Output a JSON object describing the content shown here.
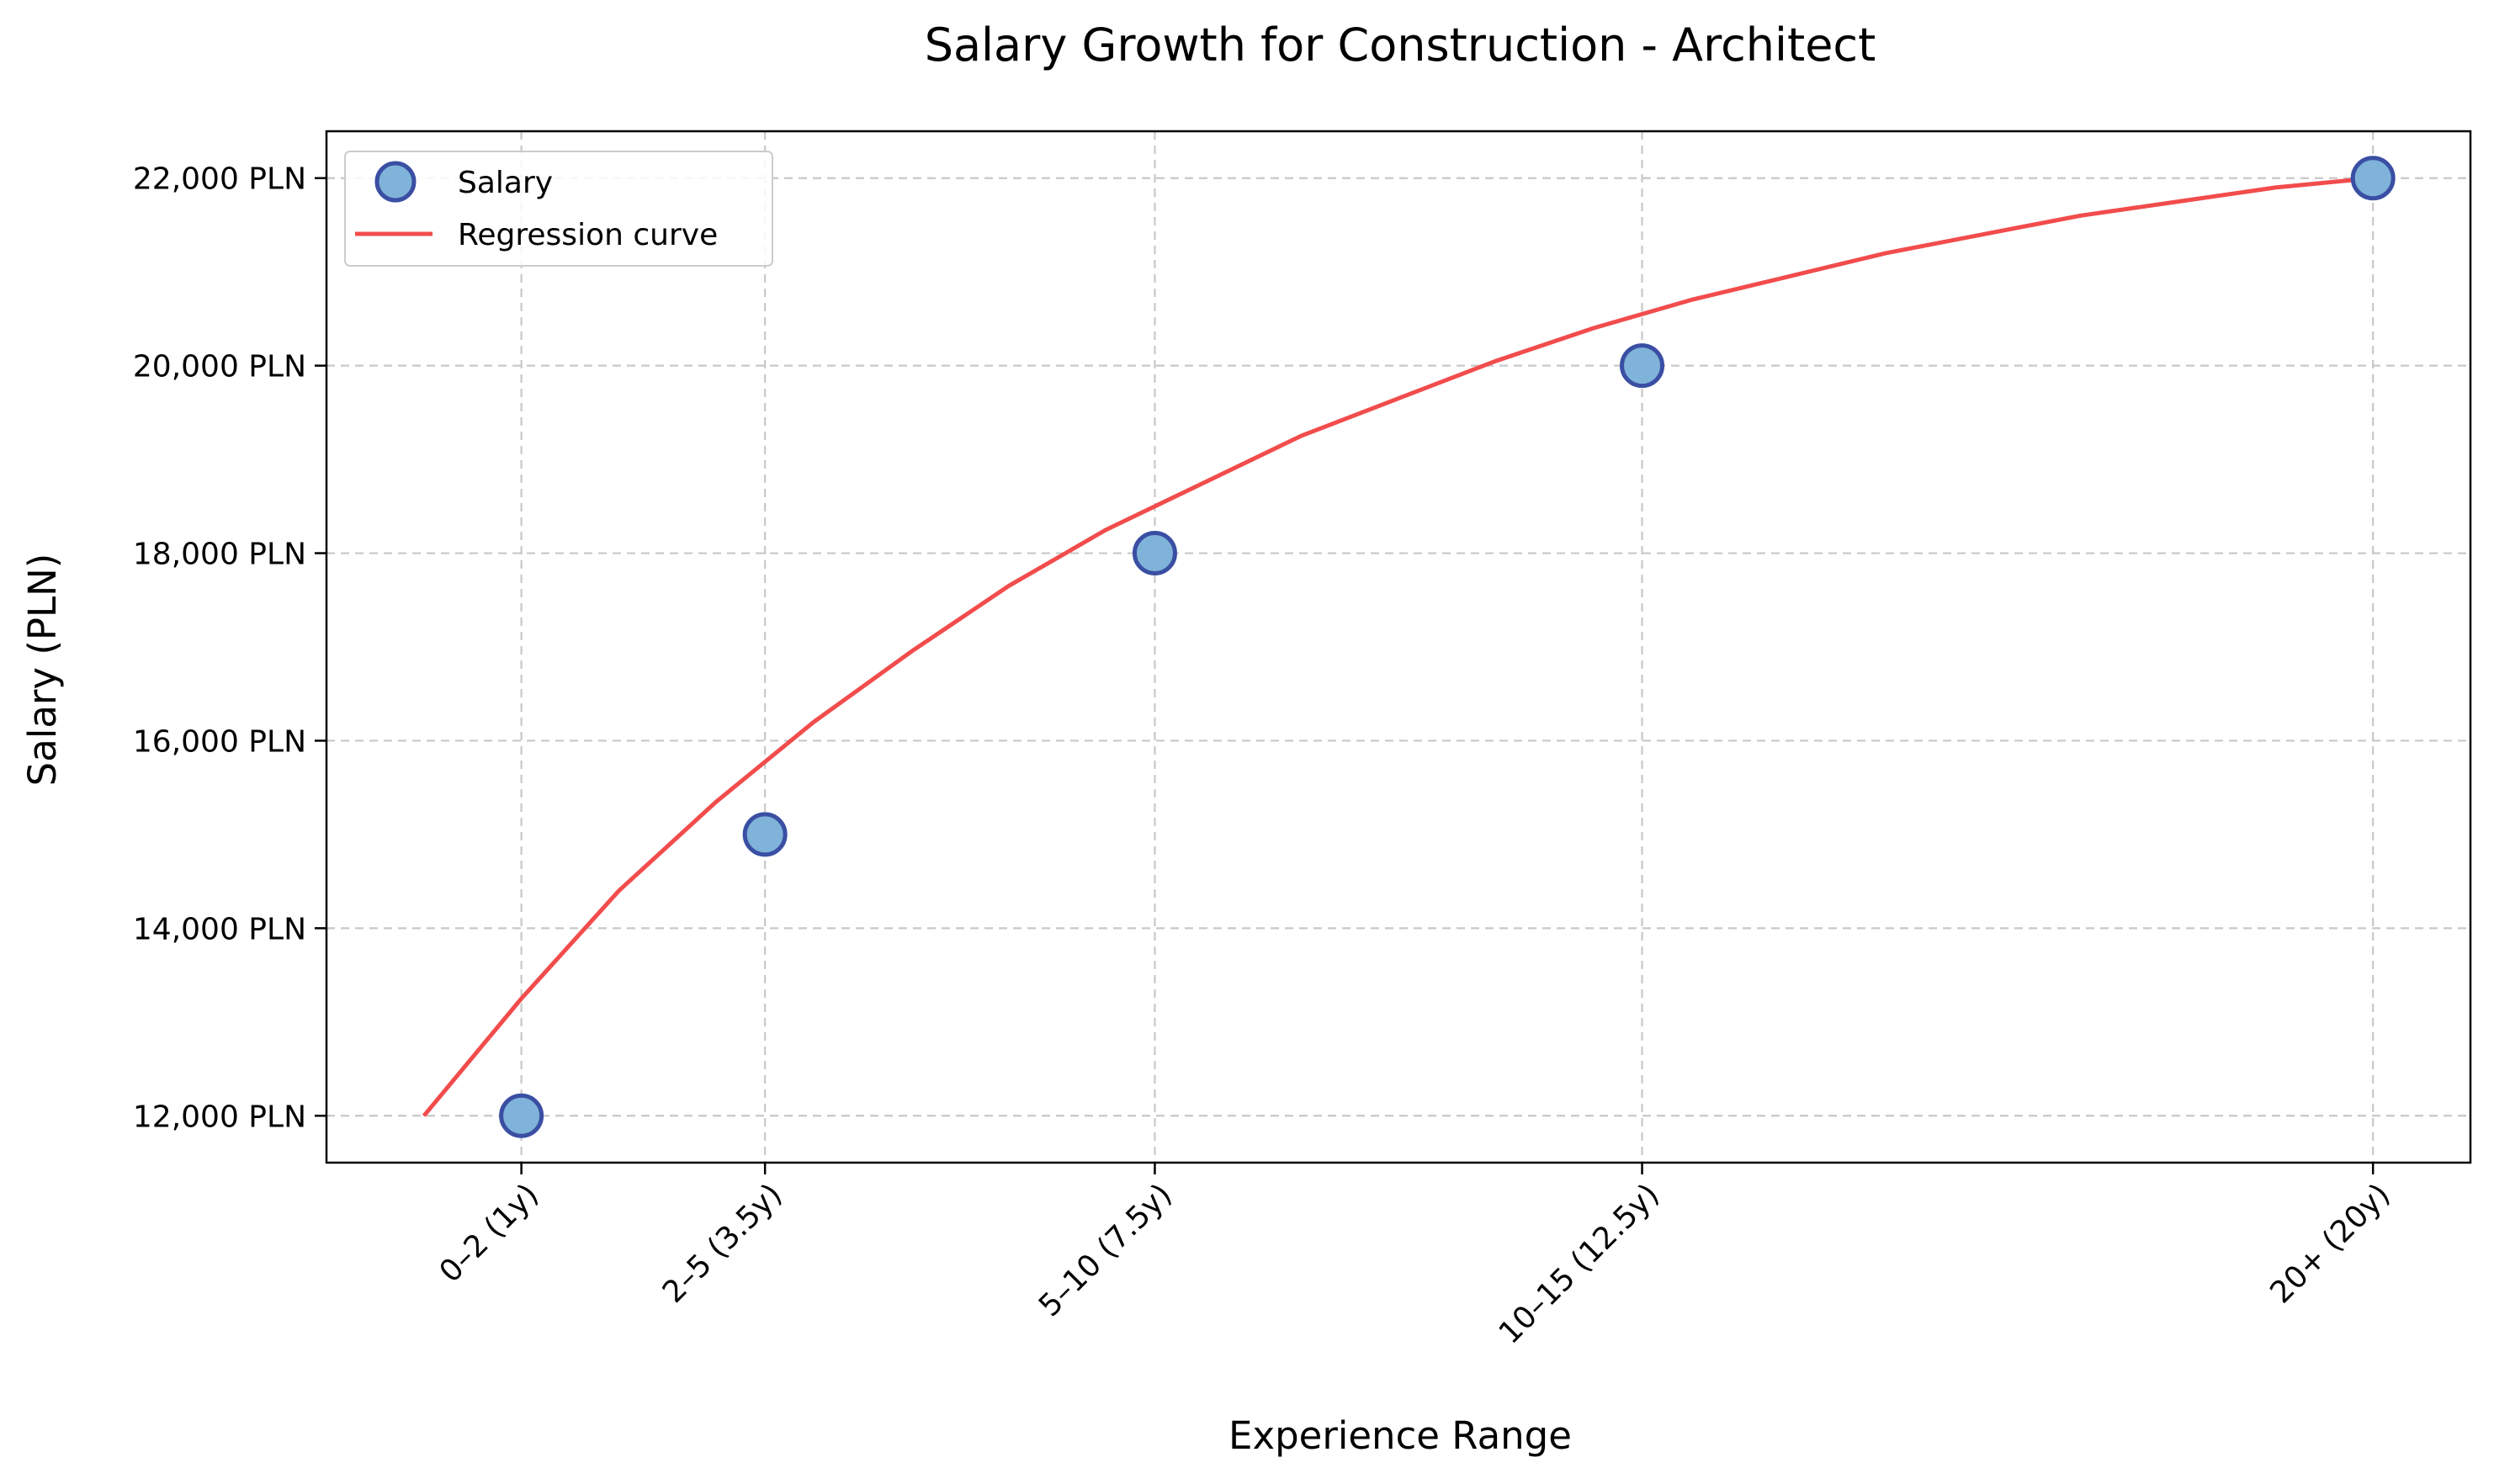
{
  "chart_data": {
    "type": "scatter",
    "title": "Salary Growth for Construction - Architect",
    "xlabel": "Experience Range",
    "ylabel": "Salary (PLN)",
    "x_tick_values": [
      1,
      3.5,
      7.5,
      12.5,
      20
    ],
    "x_tick_labels": [
      "0–2 (1y)",
      "2–5 (3.5y)",
      "5–10 (7.5y)",
      "10–15 (12.5y)",
      "20+ (20y)"
    ],
    "xlim": [
      -1,
      21
    ],
    "ylim": [
      11500,
      22500
    ],
    "y_tick_values": [
      12000,
      14000,
      16000,
      18000,
      20000,
      22000
    ],
    "y_tick_labels": [
      "12,000 PLN",
      "14,000 PLN",
      "16,000 PLN",
      "18,000 PLN",
      "20,000 PLN",
      "22,000 PLN"
    ],
    "grid": true,
    "legend_position": "top-left",
    "series": [
      {
        "name": "Salary",
        "kind": "scatter",
        "x": [
          1,
          3.5,
          7.5,
          12.5,
          20
        ],
        "y": [
          12000,
          15000,
          18000,
          20000,
          22000
        ],
        "color": "#7fb3d9",
        "edge_color": "#3a4fa3"
      },
      {
        "name": "Regression curve",
        "kind": "line",
        "x": [
          0,
          1,
          2,
          3,
          4,
          5,
          6,
          7,
          8,
          9,
          10,
          11,
          12,
          13,
          14,
          15,
          16,
          17,
          18,
          19,
          20
        ],
        "y": [
          12000,
          13250,
          14400,
          15350,
          16200,
          16950,
          17650,
          18250,
          18750,
          19250,
          19650,
          20050,
          20400,
          20700,
          20950,
          21200,
          21400,
          21600,
          21750,
          21900,
          22000
        ],
        "color": "#f24c4c"
      }
    ]
  }
}
